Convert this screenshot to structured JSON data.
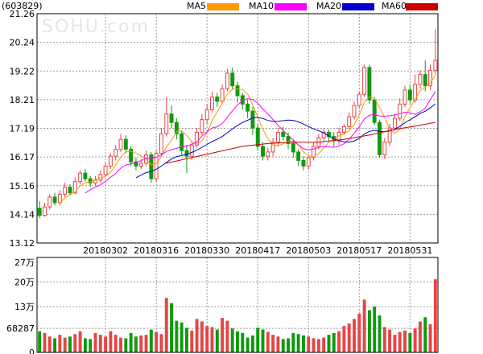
{
  "stock": {
    "code": "(603829)",
    "watermark": "SOHU.com"
  },
  "legend": [
    {
      "name": "MA5",
      "color": "#ff9900"
    },
    {
      "name": "MA10",
      "color": "#ff00ff"
    },
    {
      "name": "MA20",
      "color": "#0000cc"
    },
    {
      "name": "MA60",
      "color": "#cc0000"
    }
  ],
  "colors": {
    "up": "#e64545",
    "down": "#109910",
    "grid": "#9a9a9a",
    "axis": "#000000"
  },
  "chart_data": [
    {
      "type": "candlestick",
      "title": "",
      "y_ticks": [
        "21.26",
        "20.24",
        "19.22",
        "18.21",
        "17.19",
        "16.17",
        "15.16",
        "14.14",
        "13.12"
      ],
      "ylim": [
        13.12,
        21.26
      ],
      "x_tick_labels": [
        {
          "label": "20180302",
          "index": 13
        },
        {
          "label": "20180316",
          "index": 23
        },
        {
          "label": "20180330",
          "index": 33
        },
        {
          "label": "20180417",
          "index": 43
        },
        {
          "label": "20180503",
          "index": 53
        },
        {
          "label": "20180517",
          "index": 63
        },
        {
          "label": "20180531",
          "index": 73
        }
      ],
      "candles": [
        [
          14.35,
          14.1,
          14.6,
          14.0
        ],
        [
          14.1,
          14.4,
          14.55,
          14.05
        ],
        [
          14.4,
          14.75,
          14.85,
          14.3
        ],
        [
          14.75,
          14.55,
          14.9,
          14.45
        ],
        [
          14.55,
          14.85,
          15.0,
          14.45
        ],
        [
          14.85,
          15.1,
          15.25,
          14.75
        ],
        [
          15.1,
          14.9,
          15.2,
          14.8
        ],
        [
          14.9,
          15.3,
          15.45,
          14.85
        ],
        [
          15.3,
          15.6,
          15.7,
          15.2
        ],
        [
          15.6,
          15.4,
          15.75,
          15.3
        ],
        [
          15.4,
          15.25,
          15.5,
          15.1
        ],
        [
          15.25,
          15.35,
          15.5,
          15.15
        ],
        [
          15.35,
          15.55,
          15.7,
          15.25
        ],
        [
          15.55,
          15.85,
          16.0,
          15.45
        ],
        [
          15.85,
          16.2,
          16.3,
          15.75
        ],
        [
          16.2,
          16.45,
          16.6,
          16.05
        ],
        [
          16.45,
          16.8,
          17.0,
          16.35
        ],
        [
          16.8,
          16.45,
          16.95,
          16.3
        ],
        [
          16.45,
          16.0,
          16.55,
          15.85
        ],
        [
          16.0,
          15.85,
          16.15,
          15.7
        ],
        [
          15.85,
          15.95,
          16.1,
          15.75
        ],
        [
          15.95,
          16.25,
          16.4,
          15.85
        ],
        [
          16.25,
          15.4,
          16.35,
          15.25
        ],
        [
          15.4,
          16.3,
          16.4,
          15.3
        ],
        [
          16.3,
          17.0,
          17.2,
          16.2
        ],
        [
          17.0,
          17.7,
          18.3,
          16.9
        ],
        [
          17.7,
          17.4,
          18.0,
          17.2
        ],
        [
          17.4,
          17.0,
          17.55,
          16.8
        ],
        [
          17.0,
          16.4,
          17.1,
          16.25
        ],
        [
          16.4,
          16.2,
          16.6,
          15.6
        ],
        [
          16.2,
          16.6,
          16.7,
          16.05
        ],
        [
          16.6,
          17.05,
          17.2,
          16.5
        ],
        [
          17.05,
          17.5,
          17.7,
          16.95
        ],
        [
          17.5,
          17.85,
          18.05,
          17.35
        ],
        [
          17.85,
          18.3,
          18.5,
          17.75
        ],
        [
          18.3,
          18.15,
          18.45,
          17.95
        ],
        [
          18.15,
          18.6,
          18.75,
          18.05
        ],
        [
          18.6,
          19.15,
          19.3,
          18.5
        ],
        [
          19.15,
          18.7,
          19.35,
          18.55
        ],
        [
          18.7,
          18.35,
          18.85,
          18.1
        ],
        [
          18.35,
          18.05,
          18.45,
          17.85
        ],
        [
          18.05,
          17.8,
          18.2,
          17.55
        ],
        [
          17.8,
          17.2,
          17.95,
          16.95
        ],
        [
          17.2,
          16.55,
          17.35,
          16.4
        ],
        [
          16.55,
          16.2,
          16.7,
          16.05
        ],
        [
          16.2,
          16.35,
          16.5,
          16.05
        ],
        [
          16.35,
          16.7,
          16.85,
          16.2
        ],
        [
          16.7,
          17.05,
          17.2,
          16.55
        ],
        [
          17.05,
          16.9,
          17.25,
          16.75
        ],
        [
          16.9,
          16.65,
          17.05,
          16.45
        ],
        [
          16.65,
          16.35,
          16.8,
          16.15
        ],
        [
          16.35,
          16.05,
          16.45,
          15.85
        ],
        [
          16.05,
          15.85,
          16.2,
          15.7
        ],
        [
          15.85,
          16.15,
          16.25,
          15.75
        ],
        [
          16.15,
          16.55,
          16.7,
          16.05
        ],
        [
          16.55,
          16.85,
          17.0,
          16.45
        ],
        [
          16.85,
          17.05,
          17.2,
          16.7
        ],
        [
          17.05,
          16.9,
          17.15,
          16.75
        ],
        [
          16.9,
          16.75,
          17.05,
          16.55
        ],
        [
          16.75,
          17.05,
          17.2,
          16.6
        ],
        [
          17.05,
          17.25,
          17.35,
          16.95
        ],
        [
          17.25,
          17.6,
          17.75,
          17.15
        ],
        [
          17.6,
          18.0,
          18.15,
          17.5
        ],
        [
          18.0,
          18.4,
          18.5,
          17.9
        ],
        [
          18.4,
          19.35,
          19.45,
          18.3
        ],
        [
          19.35,
          18.2,
          19.45,
          18.05
        ],
        [
          18.2,
          17.4,
          18.3,
          17.3
        ],
        [
          17.4,
          16.25,
          17.5,
          16.15
        ],
        [
          16.25,
          16.7,
          16.85,
          16.1
        ],
        [
          16.7,
          17.2,
          17.35,
          16.55
        ],
        [
          17.2,
          17.55,
          17.7,
          17.1
        ],
        [
          17.55,
          18.05,
          18.25,
          17.45
        ],
        [
          18.05,
          18.55,
          18.7,
          17.95
        ],
        [
          18.55,
          18.2,
          18.75,
          18.05
        ],
        [
          18.2,
          18.75,
          19.1,
          18.1
        ],
        [
          18.75,
          19.1,
          19.25,
          18.6
        ],
        [
          19.1,
          18.7,
          19.6,
          18.5
        ],
        [
          18.7,
          19.25,
          19.45,
          18.55
        ],
        [
          19.25,
          19.6,
          20.7,
          19.1
        ]
      ],
      "ma5_start_index": 4,
      "ma10_start_index": 9,
      "ma20_start_index": 19,
      "ma60": [
        [
          25,
          15.95
        ],
        [
          30,
          16.15
        ],
        [
          35,
          16.35
        ],
        [
          40,
          16.55
        ],
        [
          45,
          16.65
        ],
        [
          50,
          16.7
        ],
        [
          55,
          16.7
        ],
        [
          60,
          16.8
        ],
        [
          65,
          16.95
        ],
        [
          70,
          17.15
        ],
        [
          75,
          17.3
        ],
        [
          78,
          17.4
        ]
      ]
    },
    {
      "type": "bar",
      "title": "",
      "unit": "shares",
      "y_ticks": [
        "27万",
        "20万",
        "13万",
        "68287",
        "0"
      ],
      "ylim": [
        0,
        270000
      ],
      "volumes": [
        60000,
        55000,
        45000,
        40000,
        50000,
        42000,
        45000,
        52000,
        60000,
        40000,
        38000,
        55000,
        50000,
        45000,
        60000,
        50000,
        42000,
        40000,
        55000,
        45000,
        48000,
        50000,
        65000,
        58000,
        52000,
        155000,
        140000,
        90000,
        85000,
        70000,
        62000,
        95000,
        88000,
        75000,
        72000,
        65000,
        98000,
        90000,
        68000,
        60000,
        55000,
        42000,
        48000,
        70000,
        65000,
        58000,
        50000,
        45000,
        38000,
        40000,
        55000,
        52000,
        48000,
        45000,
        40000,
        38000,
        42000,
        50000,
        55000,
        60000,
        75000,
        82000,
        95000,
        110000,
        150000,
        120000,
        130000,
        105000,
        72000,
        65000,
        50000,
        58000,
        62000,
        55000,
        68000,
        88000,
        100000,
        80000,
        208000
      ]
    }
  ]
}
